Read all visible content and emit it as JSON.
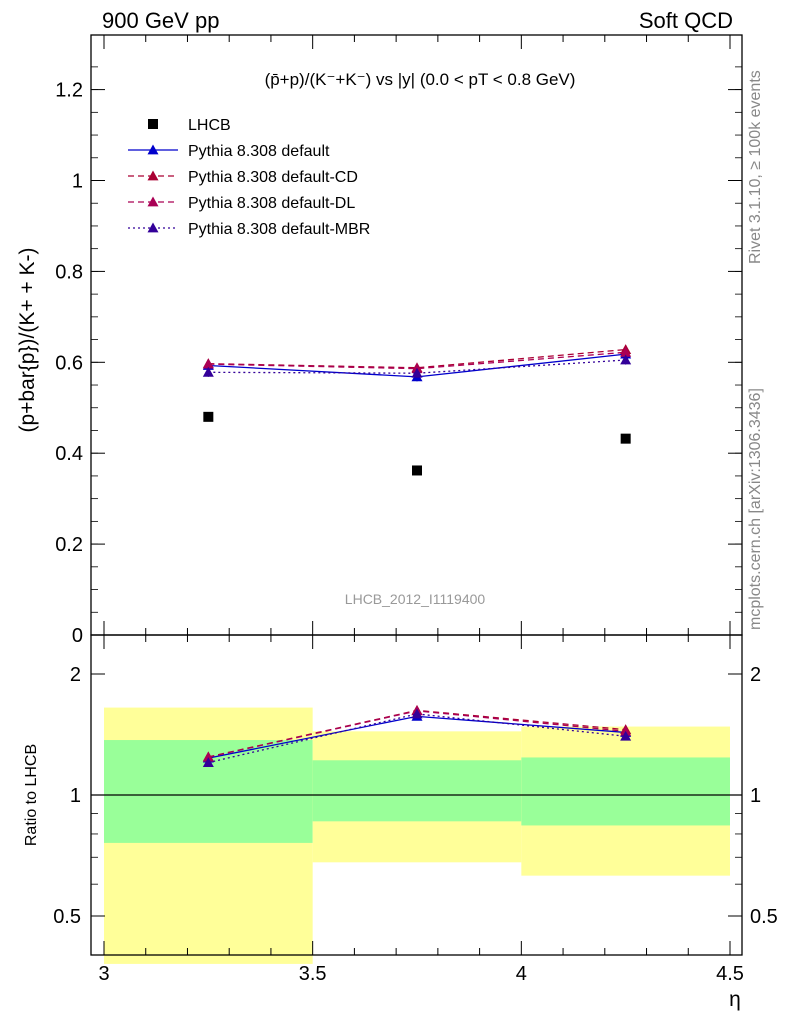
{
  "header": {
    "left": "900 GeV pp",
    "right": "Soft QCD"
  },
  "side": {
    "rivet": "Rivet 3.1.10, ≥ 100k events",
    "mcplots": "mcplots.cern.ch [arXiv:1306.3436]"
  },
  "colors": {
    "default": "#0000cc",
    "cd": "#aa0033",
    "dl": "#aa0055",
    "mbr": "#330099",
    "band_outer": "#ffff99",
    "band_inner": "#99ff99"
  },
  "chart_data": [
    {
      "type": "scatter",
      "title": "",
      "xlabel": "",
      "ylabel": "(p+bar{p})/(K+ + K-)",
      "xlim": [
        3.0,
        4.5
      ],
      "ylim": [
        0.0,
        1.32
      ],
      "yticks": [
        "0",
        "0.2",
        "0.4",
        "0.6",
        "0.8",
        "1",
        "1.2"
      ],
      "legend_position": "top-left",
      "plot_label": "(p̄+p)/(K⁻+K⁻) vs |y| (0.0 < pT < 0.8 GeV)",
      "watermark": "LHCB_2012_I1119400",
      "x": [
        3.25,
        3.75,
        4.25
      ],
      "series": [
        {
          "name": "LHCB",
          "marker": "square",
          "style": "none",
          "values": [
            0.48,
            0.362,
            0.432
          ]
        },
        {
          "name": "Pythia 8.308 default",
          "marker": "triangle",
          "style": "solid",
          "values": [
            0.593,
            0.568,
            0.618
          ],
          "errors": [
            0.01,
            0.01,
            0.01
          ]
        },
        {
          "name": "Pythia 8.308 default-CD",
          "marker": "triangle",
          "style": "dashed",
          "values": [
            0.597,
            0.588,
            0.628
          ],
          "errors": [
            0.01,
            0.01,
            0.01
          ]
        },
        {
          "name": "Pythia 8.308 default-DL",
          "marker": "triangle",
          "style": "dashed",
          "values": [
            0.596,
            0.586,
            0.622
          ],
          "errors": [
            0.01,
            0.01,
            0.01
          ]
        },
        {
          "name": "Pythia 8.308 default-MBR",
          "marker": "triangle",
          "style": "dotted",
          "values": [
            0.578,
            0.576,
            0.605
          ],
          "errors": [
            0.01,
            0.01,
            0.01
          ]
        }
      ]
    },
    {
      "type": "line",
      "title": "",
      "xlabel": "η",
      "ylabel": "Ratio to LHCB",
      "xlim": [
        3.0,
        4.5
      ],
      "ylim": [
        0.35,
        2.25
      ],
      "xticks": [
        "3",
        "3.5",
        "4",
        "4.5"
      ],
      "yticks": [
        "0.5",
        "1",
        "2"
      ],
      "reference_line": 1.0,
      "bins": [
        {
          "x_low": 3.0,
          "x_high": 3.5,
          "inner": [
            0.76,
            1.37
          ],
          "outer": [
            0.38,
            1.65
          ]
        },
        {
          "x_low": 3.5,
          "x_high": 4.0,
          "inner": [
            0.86,
            1.22
          ],
          "outer": [
            0.68,
            1.44
          ]
        },
        {
          "x_low": 4.0,
          "x_high": 4.5,
          "inner": [
            0.84,
            1.24
          ],
          "outer": [
            0.63,
            1.48
          ]
        }
      ],
      "x": [
        3.25,
        3.75,
        4.25
      ],
      "series": [
        {
          "name": "Pythia 8.308 default",
          "style": "solid",
          "values": [
            1.235,
            1.569,
            1.431
          ]
        },
        {
          "name": "Pythia 8.308 default-CD",
          "style": "dashed",
          "values": [
            1.244,
            1.624,
            1.454
          ]
        },
        {
          "name": "Pythia 8.308 default-DL",
          "style": "dashed",
          "values": [
            1.242,
            1.619,
            1.44
          ]
        },
        {
          "name": "Pythia 8.308 default-MBR",
          "style": "dotted",
          "values": [
            1.204,
            1.591,
            1.4
          ]
        }
      ]
    }
  ]
}
